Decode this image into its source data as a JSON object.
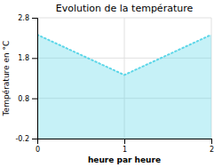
{
  "chart_data": {
    "type": "area",
    "title": "Evolution de la température",
    "xlabel": "heure par heure",
    "ylabel": "Température en °C",
    "x": [
      0,
      1,
      2
    ],
    "values": [
      2.38,
      1.38,
      2.38
    ],
    "xlim": [
      0,
      2
    ],
    "ylim": [
      -0.2,
      2.8
    ],
    "xticks": [
      0,
      1,
      2
    ],
    "yticks": [
      -0.2,
      0.8,
      1.8,
      2.8
    ],
    "grid": true,
    "color": "#5cd6e8",
    "line_style": "dotted"
  }
}
